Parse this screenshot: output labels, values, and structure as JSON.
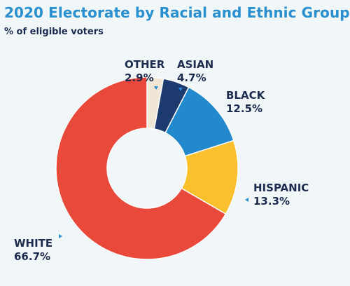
{
  "title": "2020 Electorate by Racial and Ethnic Group",
  "subtitle": "% of eligible voters",
  "chart_data": {
    "type": "pie",
    "donut": true,
    "unit": "%",
    "slices": [
      {
        "category": "OTHER",
        "value": 2.9,
        "display": "2.9%",
        "color": "#f0e6d6"
      },
      {
        "category": "ASIAN",
        "value": 4.7,
        "display": "4.7%",
        "color": "#1c3a6e"
      },
      {
        "category": "BLACK",
        "value": 12.5,
        "display": "12.5%",
        "color": "#2389cd"
      },
      {
        "category": "HISPANIC",
        "value": 13.3,
        "display": "13.3%",
        "color": "#fbc02d"
      },
      {
        "category": "WHITE",
        "value": 66.7,
        "display": "66.7%",
        "color": "#e8493a"
      }
    ],
    "label_color": "#1d2b4f",
    "pointer_color": "#2a8fcf"
  }
}
